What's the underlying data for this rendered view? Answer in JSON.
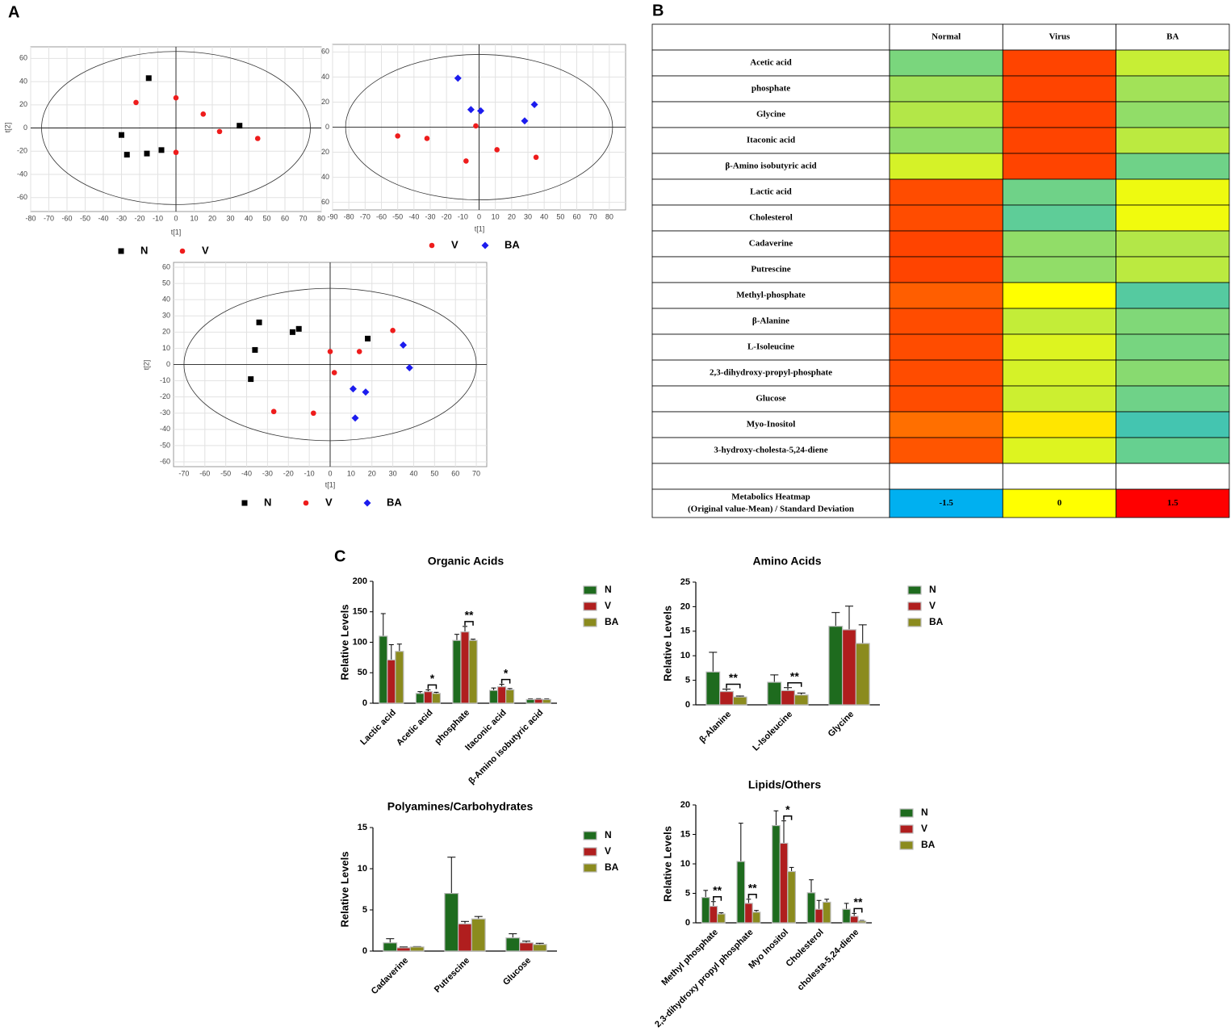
{
  "panel_labels": [
    "A",
    "B",
    "C"
  ],
  "chart_data": [
    {
      "type": "scatter",
      "x_label": "t[1]",
      "y_label": "t[2]",
      "xlim": [
        -80,
        80
      ],
      "ylim": [
        -72,
        70
      ],
      "xticks": [
        -80,
        -70,
        -60,
        -50,
        -40,
        -30,
        -20,
        -10,
        0,
        10,
        20,
        30,
        40,
        50,
        60,
        70,
        80
      ],
      "yticks": [
        -60,
        -40,
        -20,
        0,
        20,
        40,
        60
      ],
      "grid": true,
      "ellipse": {
        "cx": 0,
        "cy": 0,
        "rx": 74,
        "ry": 66
      },
      "series": [
        {
          "name": "N",
          "color": "#000000",
          "marker": "square",
          "x": [
            -15,
            -30,
            -27,
            -16,
            -8,
            35
          ],
          "values": [
            43,
            -6,
            -23,
            -22,
            -19,
            2
          ]
        },
        {
          "name": "V",
          "color": "#ee1c1c",
          "marker": "circle",
          "x": [
            -22,
            0,
            15,
            24,
            45,
            0
          ],
          "values": [
            22,
            26,
            12,
            -3,
            -9,
            -21
          ]
        }
      ]
    },
    {
      "type": "scatter",
      "x_label": "t[1]",
      "xlim": [
        -90,
        90
      ],
      "ylim": [
        -66,
        66
      ],
      "xticks": [
        -90,
        -80,
        -70,
        -60,
        -50,
        -40,
        -30,
        -20,
        -10,
        0,
        10,
        20,
        30,
        40,
        50,
        60,
        70,
        80
      ],
      "yticks": [
        {
          "value": -60,
          "label": "60"
        },
        {
          "value": -40,
          "label": "40"
        },
        {
          "value": -20,
          "label": "20"
        },
        0,
        20,
        40,
        60
      ],
      "grid": true,
      "ellipse": {
        "cx": 0,
        "cy": 0,
        "rx": 82,
        "ry": 58
      },
      "series": [
        {
          "name": "V",
          "color": "#ee1c1c",
          "marker": "circle",
          "x": [
            -50,
            -32,
            -2,
            -8,
            11,
            35
          ],
          "values": [
            -7,
            -9,
            1,
            -27,
            -18,
            -24
          ]
        },
        {
          "name": "BA",
          "color": "#1c1cee",
          "marker": "diamond",
          "x": [
            -13,
            -5,
            1,
            28,
            34
          ],
          "values": [
            39,
            14,
            13,
            5,
            18
          ]
        }
      ]
    },
    {
      "type": "scatter",
      "x_label": "t[1]",
      "y_label": "t[2]",
      "xlim": [
        -75,
        75
      ],
      "ylim": [
        -63,
        63
      ],
      "xticks": [
        -70,
        -60,
        -50,
        -40,
        -30,
        -20,
        -10,
        0,
        10,
        20,
        30,
        40,
        50,
        60,
        70
      ],
      "yticks": [
        -60,
        -50,
        -40,
        -30,
        -20,
        -10,
        0,
        10,
        20,
        30,
        40,
        50,
        60
      ],
      "grid": true,
      "ellipse": {
        "cx": 0,
        "cy": 0,
        "rx": 70,
        "ry": 47
      },
      "series": [
        {
          "name": "N",
          "color": "#000000",
          "marker": "square",
          "x": [
            -34,
            -36,
            -38,
            -18,
            -15,
            18
          ],
          "values": [
            26,
            9,
            -9,
            20,
            22,
            16
          ]
        },
        {
          "name": "V",
          "color": "#ee1c1c",
          "marker": "circle",
          "x": [
            30,
            0,
            14,
            2,
            -27,
            -8
          ],
          "values": [
            21,
            8,
            8,
            -5,
            -29,
            -30
          ]
        },
        {
          "name": "BA",
          "color": "#1c1cee",
          "marker": "diamond",
          "x": [
            35,
            38,
            11,
            17,
            12
          ],
          "values": [
            12,
            -2,
            -15,
            -17,
            -33
          ]
        }
      ]
    },
    {
      "type": "heatmap",
      "columns": [
        "Normal",
        "Virus",
        "BA"
      ],
      "rows": [
        "Acetic acid",
        "phosphate",
        "Glycine",
        "Itaconic acid",
        "β-Amino isobutyric acid",
        "Lactic acid",
        "Cholesterol",
        "Cadaverine",
        "Putrescine",
        "Methyl-phosphate",
        "β-Alanine",
        "L-Isoleucine",
        "2,3-dihydroxy-propyl-phosphate",
        "Glucose",
        "Myo-Inositol",
        "3-hydroxy-cholesta-5,24-diene"
      ],
      "values": [
        [
          -0.78,
          1.1,
          -0.33
        ],
        [
          -0.55,
          1.1,
          -0.55
        ],
        [
          -0.45,
          1.1,
          -0.65
        ],
        [
          -0.65,
          1.1,
          -0.4
        ],
        [
          -0.25,
          1.1,
          -0.85
        ],
        [
          1.05,
          -0.85,
          -0.1
        ],
        [
          1.05,
          -0.95,
          -0.08
        ],
        [
          1.1,
          -0.65,
          -0.45
        ],
        [
          1.1,
          -0.65,
          -0.4
        ],
        [
          0.95,
          0,
          -1.0
        ],
        [
          1.05,
          -0.35,
          -0.75
        ],
        [
          1.05,
          -0.2,
          -0.8
        ],
        [
          1.05,
          -0.25,
          -0.7
        ],
        [
          1.05,
          -0.3,
          -0.85
        ],
        [
          0.85,
          0.15,
          -1.1
        ],
        [
          1.0,
          -0.2,
          -0.9
        ]
      ],
      "colorscale": [
        {
          "value": -1.5,
          "color": "#00b0f0"
        },
        {
          "value": 0,
          "color": "#ffff00"
        },
        {
          "value": 1.5,
          "color": "#ff0000"
        }
      ],
      "legend_title": [
        "Metabolics Heatmap",
        "(Original value-Mean) / Standard Deviation"
      ]
    },
    {
      "type": "bar",
      "title": "Organic Acids",
      "y_label": "Relative Levels",
      "categories": [
        "Lactic acid",
        "Acetic acid",
        "phosphate",
        "Itaconic acid",
        "β-Amino isobutyric acid"
      ],
      "ylim": [
        0,
        200
      ],
      "yticks": [
        0,
        50,
        100,
        150,
        200
      ],
      "series": [
        {
          "name": "N",
          "color": "#1e6b1e",
          "values": [
            110,
            16,
            103,
            21,
            6
          ],
          "errors": [
            37,
            3,
            10,
            4,
            1
          ]
        },
        {
          "name": "V",
          "color": "#b01e1e",
          "values": [
            71,
            19,
            117,
            27,
            6.5
          ],
          "errors": [
            25,
            3,
            9,
            4,
            1
          ]
        },
        {
          "name": "BA",
          "color": "#8b8b1e",
          "values": [
            85,
            16,
            103,
            22,
            6
          ],
          "errors": [
            12,
            2,
            2,
            2,
            1
          ]
        }
      ],
      "annotations": [
        {
          "text": "*",
          "category": 1
        },
        {
          "text": "**",
          "category": 2
        },
        {
          "text": "*",
          "category": 3
        }
      ]
    },
    {
      "type": "bar",
      "title": "Amino Acids",
      "y_label": "Relative Levels",
      "categories": [
        "β-Alanine",
        "L-Isoleucine",
        "Glycine"
      ],
      "ylim": [
        0,
        25
      ],
      "yticks": [
        0,
        5,
        10,
        15,
        20,
        25
      ],
      "series": [
        {
          "name": "N",
          "color": "#1e6b1e",
          "values": [
            6.7,
            4.6,
            16
          ],
          "errors": [
            4,
            1.5,
            2.8
          ]
        },
        {
          "name": "V",
          "color": "#b01e1e",
          "values": [
            2.7,
            2.9,
            15.3
          ],
          "errors": [
            0.5,
            0.6,
            4.8
          ]
        },
        {
          "name": "BA",
          "color": "#8b8b1e",
          "values": [
            1.6,
            2.0,
            12.5
          ],
          "errors": [
            0.2,
            0.4,
            3.8
          ]
        }
      ],
      "annotations": [
        {
          "text": "**",
          "category": 0
        },
        {
          "text": "**",
          "category": 1
        }
      ]
    },
    {
      "type": "bar",
      "title": "Polyamines/Carbohydrates",
      "y_label": "Relative Levels",
      "categories": [
        "Cadaverine",
        "Putrescine",
        "Glucose"
      ],
      "ylim": [
        0,
        15
      ],
      "yticks": [
        0,
        5,
        10,
        15
      ],
      "series": [
        {
          "name": "N",
          "color": "#1e6b1e",
          "values": [
            1.0,
            7.0,
            1.6
          ],
          "errors": [
            0.5,
            4.4,
            0.5
          ]
        },
        {
          "name": "V",
          "color": "#b01e1e",
          "values": [
            0.4,
            3.3,
            1.0
          ],
          "errors": [
            0.1,
            0.3,
            0.2
          ]
        },
        {
          "name": "BA",
          "color": "#8b8b1e",
          "values": [
            0.5,
            3.9,
            0.8
          ],
          "errors": [
            0.05,
            0.3,
            0.15
          ]
        }
      ],
      "annotations": []
    },
    {
      "type": "bar",
      "title": "Lipids/Others",
      "y_label": "Relative Levels",
      "categories": [
        "Methyl phosphate",
        "2,3-dihydroxy propyl phosphate",
        "Myo Inositol",
        "Cholesterol",
        "cholesta-5,24-diene"
      ],
      "ylim": [
        0,
        20
      ],
      "yticks": [
        0,
        5,
        10,
        15,
        20
      ],
      "series": [
        {
          "name": "N",
          "color": "#1e6b1e",
          "values": [
            4.3,
            10.4,
            16.5,
            5.1,
            2.3
          ],
          "errors": [
            1.2,
            6.5,
            2.5,
            2.2,
            1
          ]
        },
        {
          "name": "V",
          "color": "#b01e1e",
          "values": [
            2.8,
            3.3,
            13.5,
            2.3,
            1.1
          ],
          "errors": [
            0.8,
            0.7,
            3.8,
            1.5,
            0.5
          ]
        },
        {
          "name": "BA",
          "color": "#8b8b1e",
          "values": [
            1.5,
            1.8,
            8.7,
            3.5,
            0.3
          ],
          "errors": [
            0.2,
            0.3,
            0.7,
            0.5,
            0.1
          ]
        }
      ],
      "annotations": [
        {
          "text": "**",
          "category": 0
        },
        {
          "text": "**",
          "category": 1
        },
        {
          "text": "*",
          "category": 2
        },
        {
          "text": "**",
          "category": 4
        }
      ]
    }
  ]
}
